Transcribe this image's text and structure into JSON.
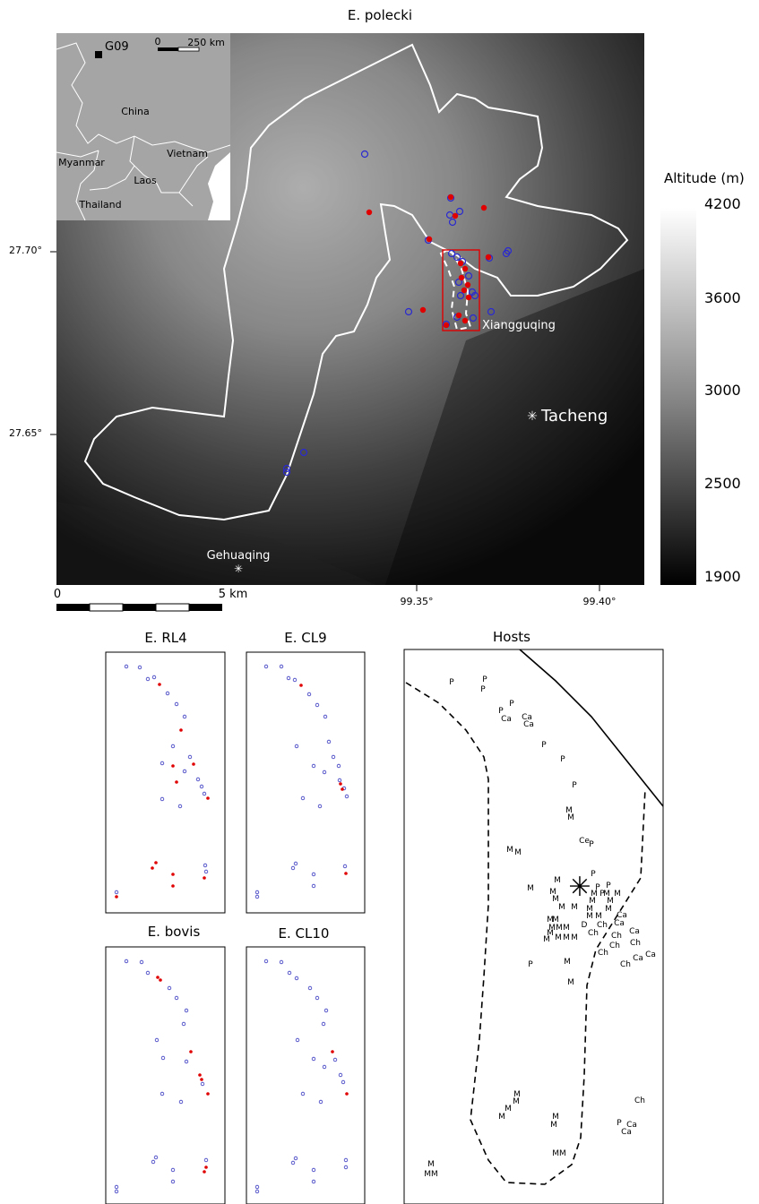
{
  "main_map": {
    "title": "E. polecki",
    "lat_labels": [
      "27.70°",
      "27.65°"
    ],
    "lon_labels": [
      "99.35°",
      "99.40°"
    ],
    "scalebar": {
      "zero": "0",
      "end": "5 km"
    },
    "places": {
      "xiangguqing": "Xiangguqing",
      "tacheng": "Tacheng",
      "gehuaqing": "Gehuaqing"
    },
    "inset": {
      "site": "G09",
      "scale_zero": "0",
      "scale_end": "250 km",
      "countries": [
        "China",
        "Myanmar",
        "Vietnam",
        "Laos",
        "Thailand"
      ]
    }
  },
  "legend": {
    "title": "Altitude (m)",
    "ticks": [
      "4200",
      "3600",
      "3000",
      "2500",
      "1900"
    ]
  },
  "panels": {
    "rl4": "E. RL4",
    "cl9": "E. CL9",
    "bovis": "E. bovis",
    "cl10": "E. CL10",
    "hosts": "Hosts"
  },
  "colors": {
    "positive": "#e00000",
    "negative": "#2a2ad0",
    "boundary": "#ffffff",
    "study_box": "#e00000"
  },
  "host_labels": [
    "P",
    "P",
    "P",
    "P",
    "P",
    "Ca",
    "Ca",
    "Ca",
    "P",
    "P",
    "P",
    "M",
    "M",
    "M",
    "M",
    "Ce",
    "P",
    "P",
    "M",
    "M",
    "P",
    "P",
    "P",
    "M",
    "M",
    "M",
    "M",
    "M",
    "M",
    "M",
    "M",
    "M",
    "M",
    "M",
    "M",
    "M",
    "M",
    "Ca",
    "D",
    "Ch",
    "Ca",
    "Ch",
    "Ch",
    "Ch",
    "Ca",
    "Ca",
    "Ca",
    "M",
    "Ch",
    "Ch",
    "M",
    "M",
    "M",
    "P",
    "M",
    "M",
    "M",
    "M",
    "M",
    "M",
    "M",
    "Ch",
    "Ch",
    "P",
    "Ca",
    "Ca",
    "M",
    "M",
    "M",
    "M",
    "MM",
    "M",
    "M"
  ]
}
